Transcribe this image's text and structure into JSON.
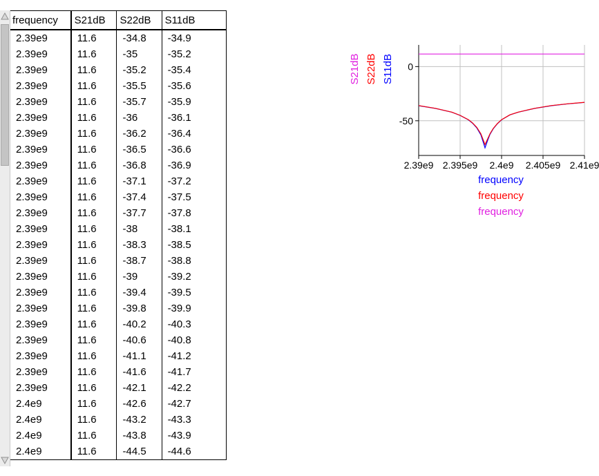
{
  "table": {
    "columns": [
      "frequency",
      "S21dB",
      "S22dB",
      "S11dB"
    ],
    "rows": [
      [
        "2.39e9",
        "11.6",
        "-34.8",
        "-34.9"
      ],
      [
        "2.39e9",
        "11.6",
        "-35",
        "-35.2"
      ],
      [
        "2.39e9",
        "11.6",
        "-35.2",
        "-35.4"
      ],
      [
        "2.39e9",
        "11.6",
        "-35.5",
        "-35.6"
      ],
      [
        "2.39e9",
        "11.6",
        "-35.7",
        "-35.9"
      ],
      [
        "2.39e9",
        "11.6",
        "-36",
        "-36.1"
      ],
      [
        "2.39e9",
        "11.6",
        "-36.2",
        "-36.4"
      ],
      [
        "2.39e9",
        "11.6",
        "-36.5",
        "-36.6"
      ],
      [
        "2.39e9",
        "11.6",
        "-36.8",
        "-36.9"
      ],
      [
        "2.39e9",
        "11.6",
        "-37.1",
        "-37.2"
      ],
      [
        "2.39e9",
        "11.6",
        "-37.4",
        "-37.5"
      ],
      [
        "2.39e9",
        "11.6",
        "-37.7",
        "-37.8"
      ],
      [
        "2.39e9",
        "11.6",
        "-38",
        "-38.1"
      ],
      [
        "2.39e9",
        "11.6",
        "-38.3",
        "-38.5"
      ],
      [
        "2.39e9",
        "11.6",
        "-38.7",
        "-38.8"
      ],
      [
        "2.39e9",
        "11.6",
        "-39",
        "-39.2"
      ],
      [
        "2.39e9",
        "11.6",
        "-39.4",
        "-39.5"
      ],
      [
        "2.39e9",
        "11.6",
        "-39.8",
        "-39.9"
      ],
      [
        "2.39e9",
        "11.6",
        "-40.2",
        "-40.3"
      ],
      [
        "2.39e9",
        "11.6",
        "-40.6",
        "-40.8"
      ],
      [
        "2.39e9",
        "11.6",
        "-41.1",
        "-41.2"
      ],
      [
        "2.39e9",
        "11.6",
        "-41.6",
        "-41.7"
      ],
      [
        "2.39e9",
        "11.6",
        "-42.1",
        "-42.2"
      ],
      [
        "2.4e9",
        "11.6",
        "-42.6",
        "-42.7"
      ],
      [
        "2.4e9",
        "11.6",
        "-43.2",
        "-43.3"
      ],
      [
        "2.4e9",
        "11.6",
        "-43.8",
        "-43.9"
      ],
      [
        "2.4e9",
        "11.6",
        "-44.5",
        "-44.6"
      ]
    ],
    "scroll_position": 0.0
  },
  "colors": {
    "S21dB": "#e020e0",
    "S22dB": "#ff0000",
    "S11dB": "#0000ff",
    "grid": "#c0c0c0",
    "axes": "#000000"
  },
  "chart_data": {
    "type": "line",
    "x_tick_labels": [
      "2.39e9",
      "2.395e9",
      "2.4e9",
      "2.405e9",
      "2.41e9"
    ],
    "x_ticks": [
      2390000000.0,
      2395000000.0,
      2400000000.0,
      2405000000.0,
      2410000000.0
    ],
    "y_tick_labels": [
      "0",
      "-50"
    ],
    "y_ticks": [
      0,
      -50
    ],
    "xlim": [
      2390000000.0,
      2410000000.0
    ],
    "ylim": [
      -82,
      20
    ],
    "grid": true,
    "y_axis_labels": [
      "S21dB",
      "S22dB",
      "S11dB"
    ],
    "x_axis_labels": [
      "frequency",
      "frequency",
      "frequency"
    ],
    "series": [
      {
        "name": "S21dB",
        "x": [
          2390000000.0,
          2410000000.0
        ],
        "y": [
          11.6,
          11.6
        ]
      },
      {
        "name": "S22dB",
        "x": [
          2390000000.0,
          2392000000.0,
          2394000000.0,
          2395000000.0,
          2396000000.0,
          2396500000.0,
          2397000000.0,
          2397500000.0,
          2397800000.0,
          2398000000.0,
          2398300000.0,
          2398600000.0,
          2399000000.0,
          2399500000.0,
          2400000000.0,
          2401000000.0,
          2402000000.0,
          2404000000.0,
          2406000000.0,
          2408000000.0,
          2410000000.0
        ],
        "y": [
          -36,
          -38.5,
          -42,
          -45,
          -49,
          -52,
          -56,
          -62,
          -68,
          -72,
          -67,
          -62,
          -57,
          -52.5,
          -49,
          -44.5,
          -42,
          -38.5,
          -36,
          -34.3,
          -33
        ]
      },
      {
        "name": "S11dB",
        "x": [
          2390000000.0,
          2392000000.0,
          2394000000.0,
          2395000000.0,
          2396000000.0,
          2396500000.0,
          2397000000.0,
          2397500000.0,
          2397800000.0,
          2398000000.0,
          2398300000.0,
          2398600000.0,
          2399000000.0,
          2399500000.0,
          2400000000.0,
          2401000000.0,
          2402000000.0,
          2404000000.0,
          2406000000.0,
          2408000000.0,
          2410000000.0
        ],
        "y": [
          -36.1,
          -38.6,
          -42.1,
          -45.1,
          -49.2,
          -52.3,
          -56.5,
          -63,
          -70,
          -75,
          -68.5,
          -62.5,
          -57.3,
          -52.7,
          -49.1,
          -44.6,
          -42.1,
          -38.6,
          -36.1,
          -34.4,
          -33.1
        ]
      }
    ]
  }
}
